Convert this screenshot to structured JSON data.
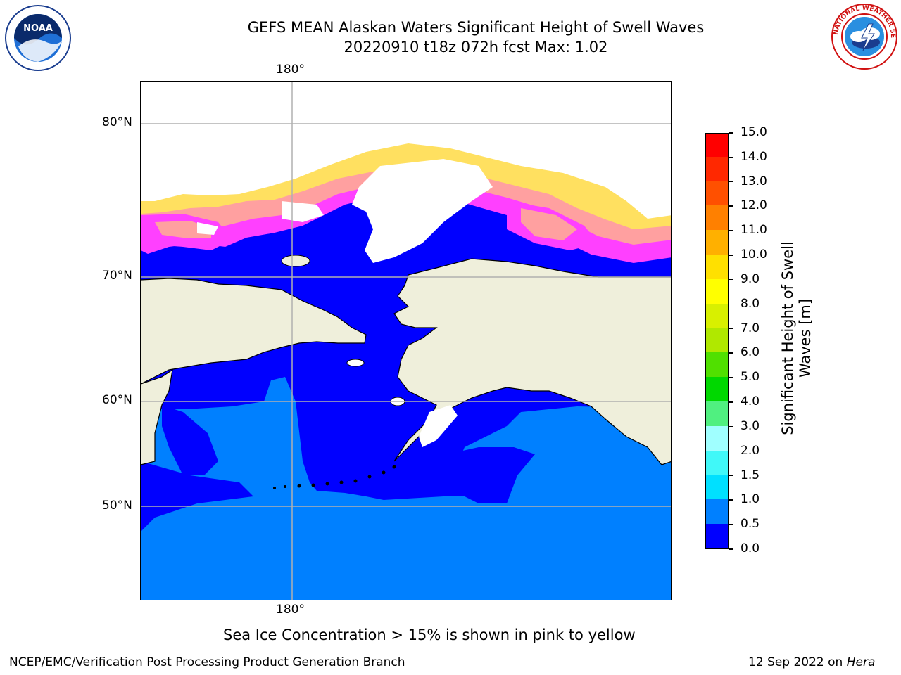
{
  "title_line1": "GEFS MEAN Alaskan Waters Significant Height of Swell Waves",
  "title_line2": "20220910 t18z 072h fcst   Max: 1.02",
  "map": {
    "lon_label_top": "180°",
    "lon_label_bottom": "180°",
    "lat_labels": [
      "80°N",
      "70°N",
      "60°N",
      "50°N"
    ],
    "colors": {
      "ocean_band_0_0_5": "#0000ff",
      "ocean_band_0_5_1_0": "#0080ff",
      "land": "#efefdb",
      "ice_low": "#ff40ff",
      "ice_mid": "#ffa0a0",
      "ice_high": "#ffe060",
      "gridline": "#b0b0b0"
    }
  },
  "colorbar": {
    "title": "Significant Height of Swell\nWaves [m]",
    "tick_labels": [
      "0.0",
      "0.5",
      "1.0",
      "1.5",
      "2.0",
      "3.0",
      "4.0",
      "5.0",
      "6.0",
      "7.0",
      "8.0",
      "9.0",
      "10.0",
      "11.0",
      "12.0",
      "13.0",
      "14.0",
      "15.0"
    ],
    "colors": [
      "#0000ff",
      "#0080ff",
      "#00e0ff",
      "#40f8f8",
      "#a0ffff",
      "#50f080",
      "#00d800",
      "#50e000",
      "#b0e800",
      "#d8f000",
      "#ffff00",
      "#ffe000",
      "#ffb000",
      "#ff8000",
      "#ff5000",
      "#ff2800",
      "#ff0000"
    ]
  },
  "note": "Sea Ice Concentration > 15% is shown in pink to yellow",
  "footer_left": "NCEP/EMC/Verification Post Processing Product Generation Branch",
  "footer_right_date": "12 Sep 2022 on",
  "footer_right_machine": "Hera",
  "logos": {
    "noaa_text": "NOAA",
    "nws_text": "NATIONAL WEATHER SERVICE"
  }
}
